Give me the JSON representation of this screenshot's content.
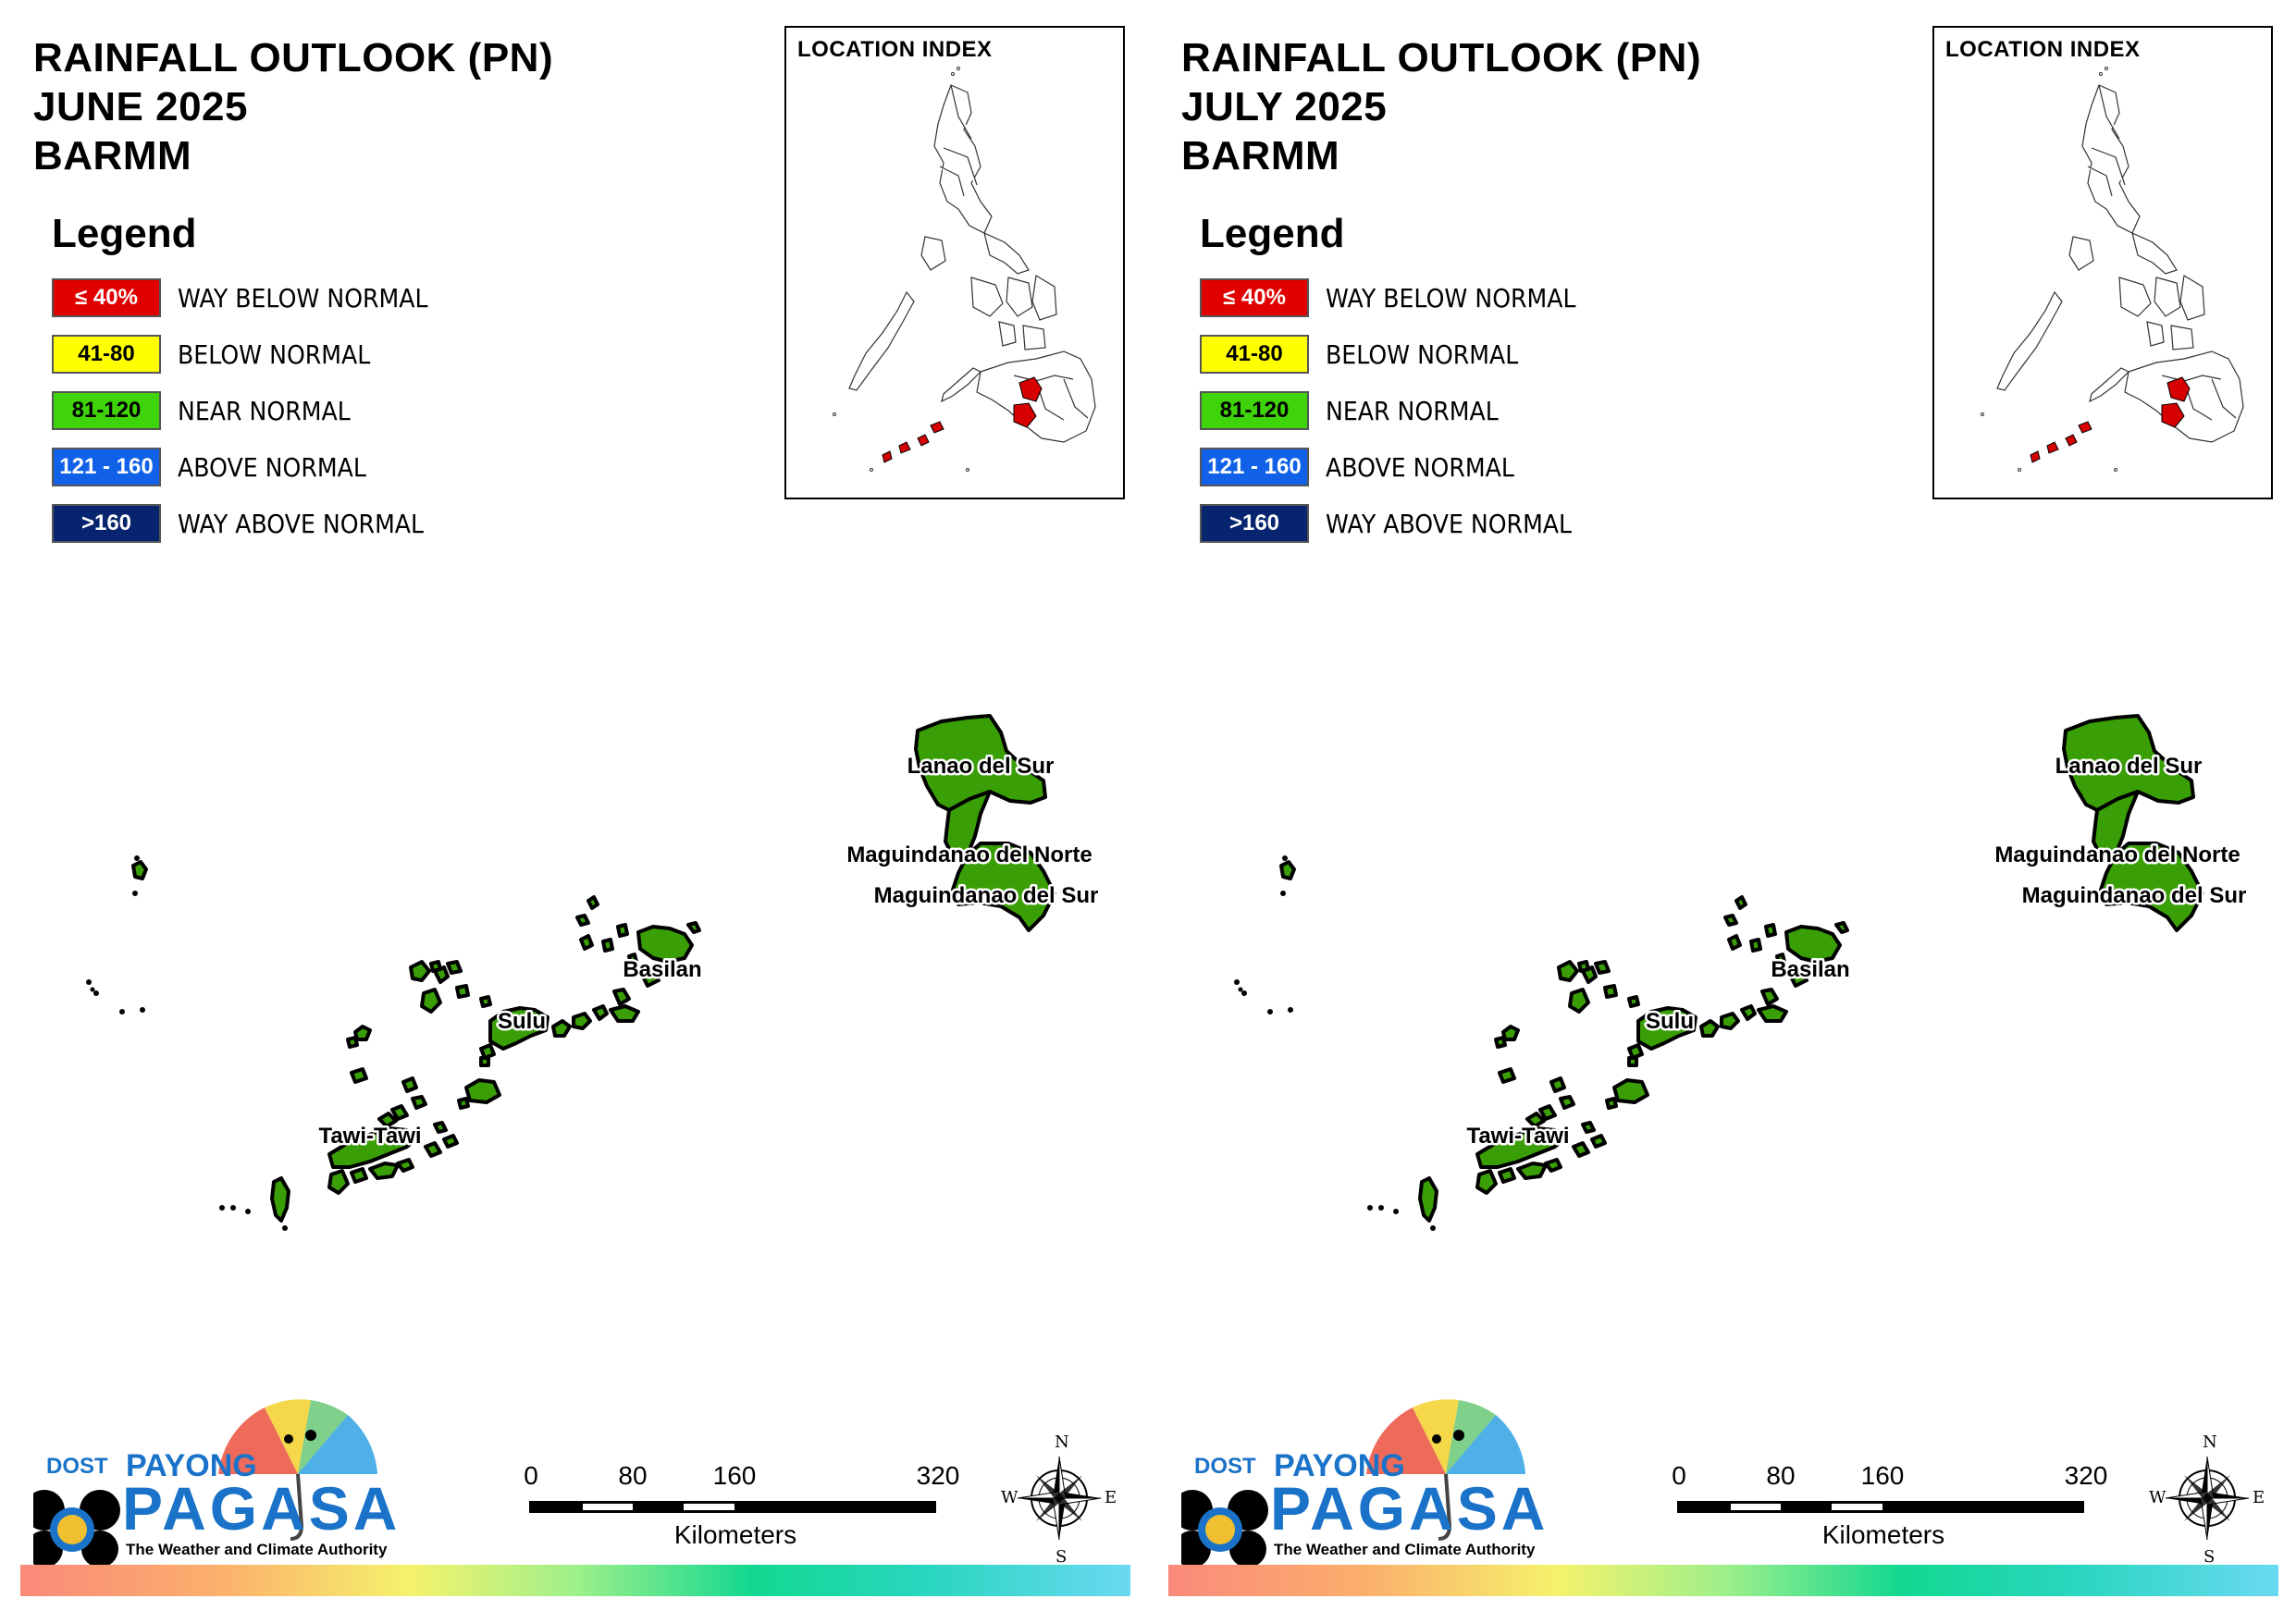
{
  "panels": [
    {
      "title_line1": "RAINFALL OUTLOOK (PN)",
      "title_line2": "JUNE 2025",
      "title_line3": "BARMM",
      "legend_title": "Legend",
      "legend": [
        {
          "range": "≤ 40%",
          "label": "WAY BELOW NORMAL",
          "color": "#e00000",
          "text_color": "#ffffff"
        },
        {
          "range": "41-80",
          "label": "BELOW NORMAL",
          "color": "#ffff00",
          "text_color": "#000000"
        },
        {
          "range": "81-120",
          "label": "NEAR NORMAL",
          "color": "#3fd40a",
          "text_color": "#000000"
        },
        {
          "range": "121 - 160",
          "label": "ABOVE NORMAL",
          "color": "#1060e8",
          "text_color": "#ffffff"
        },
        {
          "range": ">160",
          "label": "WAY ABOVE NORMAL",
          "color": "#06256e",
          "text_color": "#ffffff"
        }
      ],
      "location_index_title": "LOCATION INDEX",
      "regions": [
        {
          "name": "Lanao del Sur",
          "category": "NEAR NORMAL"
        },
        {
          "name": "Maguindanao del Norte",
          "category": "NEAR NORMAL"
        },
        {
          "name": "Maguindanao del Sur",
          "category": "NEAR NORMAL"
        },
        {
          "name": "Basilan",
          "category": "NEAR NORMAL"
        },
        {
          "name": "Sulu",
          "category": "NEAR NORMAL"
        },
        {
          "name": "Tawi-Tawi",
          "category": "NEAR NORMAL"
        }
      ],
      "scale": {
        "ticks": [
          "0",
          "80",
          "160",
          "320"
        ],
        "units": "Kilometers"
      },
      "compass": {
        "n": "N",
        "e": "E",
        "s": "S",
        "w": "W"
      },
      "logo": {
        "dost": "DOST",
        "payong": "PAYONG",
        "pagasa": "PAGASA",
        "tagline": "The Weather and Climate Authority"
      }
    },
    {
      "title_line1": "RAINFALL OUTLOOK (PN)",
      "title_line2": "JULY 2025",
      "title_line3": "BARMM",
      "legend_title": "Legend",
      "legend": [
        {
          "range": "≤ 40%",
          "label": "WAY BELOW NORMAL",
          "color": "#e00000",
          "text_color": "#ffffff"
        },
        {
          "range": "41-80",
          "label": "BELOW NORMAL",
          "color": "#ffff00",
          "text_color": "#000000"
        },
        {
          "range": "81-120",
          "label": "NEAR NORMAL",
          "color": "#3fd40a",
          "text_color": "#000000"
        },
        {
          "range": "121 - 160",
          "label": "ABOVE NORMAL",
          "color": "#1060e8",
          "text_color": "#ffffff"
        },
        {
          "range": ">160",
          "label": "WAY ABOVE NORMAL",
          "color": "#06256e",
          "text_color": "#ffffff"
        }
      ],
      "location_index_title": "LOCATION INDEX",
      "regions": [
        {
          "name": "Lanao del Sur",
          "category": "NEAR NORMAL"
        },
        {
          "name": "Maguindanao del Norte",
          "category": "NEAR NORMAL"
        },
        {
          "name": "Maguindanao del Sur",
          "category": "NEAR NORMAL"
        },
        {
          "name": "Basilan",
          "category": "NEAR NORMAL"
        },
        {
          "name": "Sulu",
          "category": "NEAR NORMAL"
        },
        {
          "name": "Tawi-Tawi",
          "category": "NEAR NORMAL"
        }
      ],
      "scale": {
        "ticks": [
          "0",
          "80",
          "160",
          "320"
        ],
        "units": "Kilometers"
      },
      "compass": {
        "n": "N",
        "e": "E",
        "s": "S",
        "w": "W"
      },
      "logo": {
        "dost": "DOST",
        "payong": "PAYONG",
        "pagasa": "PAGASA",
        "tagline": "The Weather and Climate Authority"
      }
    }
  ],
  "colors": {
    "region_fill": "#3a9e06",
    "region_stroke": "#000000",
    "highlight_red": "#d60000",
    "logo_blue": "#1a73c8"
  }
}
